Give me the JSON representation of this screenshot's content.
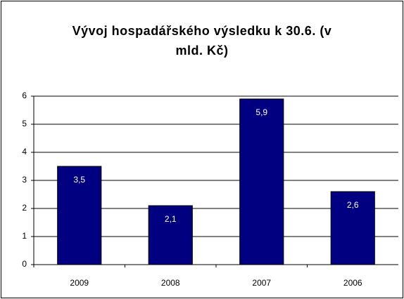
{
  "chart_data": {
    "type": "bar",
    "title": "Vývoj hospadářského výsledku k 30.6. (v mld. Kč)",
    "categories": [
      "2009",
      "2008",
      "2007",
      "2006"
    ],
    "values": [
      3.5,
      2.1,
      5.9,
      2.6
    ],
    "value_labels": [
      "3,5",
      "2,1",
      "5,9",
      "2,6"
    ],
    "color": "#000080",
    "ylim": [
      0,
      6
    ],
    "yticks": [
      0,
      1,
      2,
      3,
      4,
      5,
      6
    ],
    "grid": true
  }
}
